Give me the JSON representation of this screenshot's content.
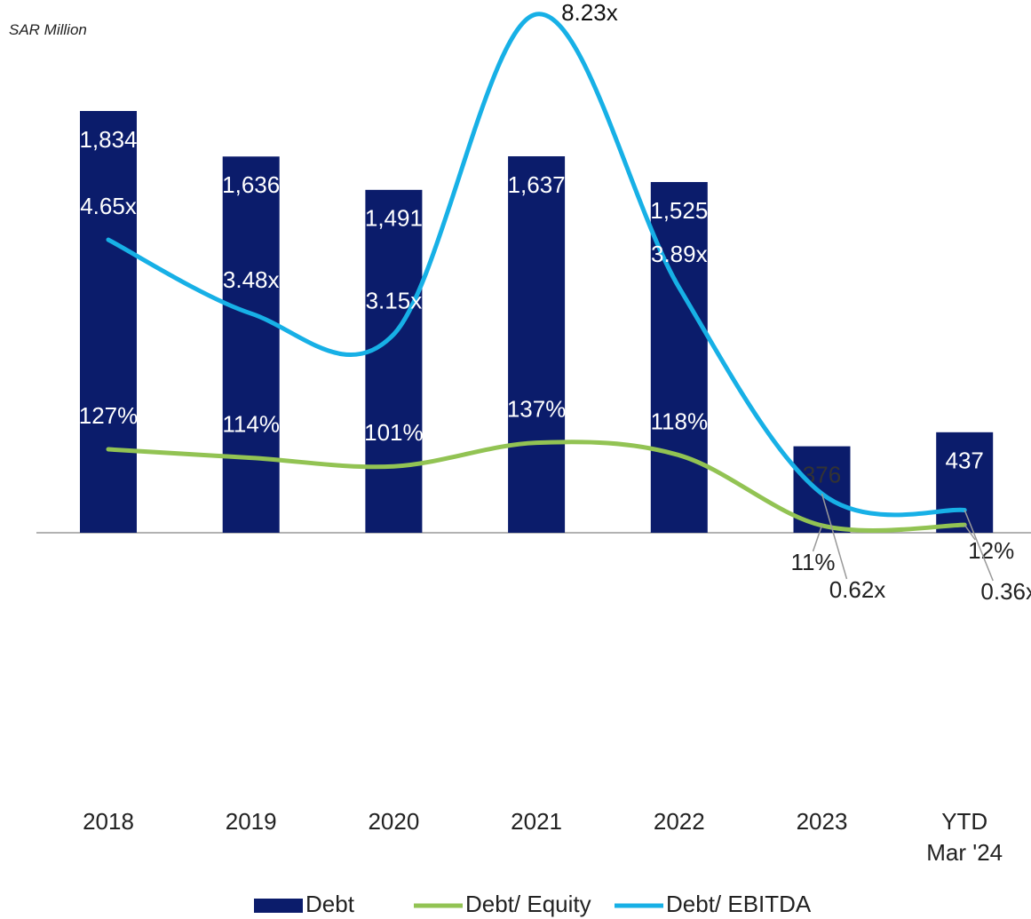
{
  "chart_data": {
    "type": "bar",
    "y_label": "SAR Million",
    "categories": [
      "2018",
      "2019",
      "2020",
      "2021",
      "2022",
      "2023",
      "YTD Mar '24"
    ],
    "ylim": [
      0,
      2000
    ],
    "y2lim": [
      0,
      700
    ],
    "y3lim": [
      0,
      7.3
    ],
    "legend": "bottom",
    "series": [
      {
        "name": "Debt",
        "type": "bar",
        "color": "#0b1c6b",
        "values": [
          1834,
          1636,
          1491,
          1637,
          1525,
          376,
          437
        ],
        "value_labels": [
          "1,834",
          "1,636",
          "1,491",
          "1,637",
          "1,525",
          "376",
          "437"
        ]
      },
      {
        "name": "Debt/ Equity",
        "type": "line",
        "axis": "y2",
        "color": "#92c353",
        "values": [
          127,
          114,
          101,
          137,
          118,
          11,
          12
        ],
        "value_labels": [
          "127%",
          "114%",
          "101%",
          "137%",
          "118%",
          "11%",
          "12%"
        ]
      },
      {
        "name": "Debt/ EBITDA",
        "type": "line",
        "axis": "y3",
        "color": "#17b0e6",
        "values": [
          4.65,
          3.48,
          3.15,
          8.23,
          3.89,
          0.62,
          0.36
        ],
        "value_labels": [
          "4.65x",
          "3.48x",
          "3.15x",
          "8.23x",
          "3.89x",
          "0.62x",
          "0.36x"
        ]
      }
    ]
  }
}
